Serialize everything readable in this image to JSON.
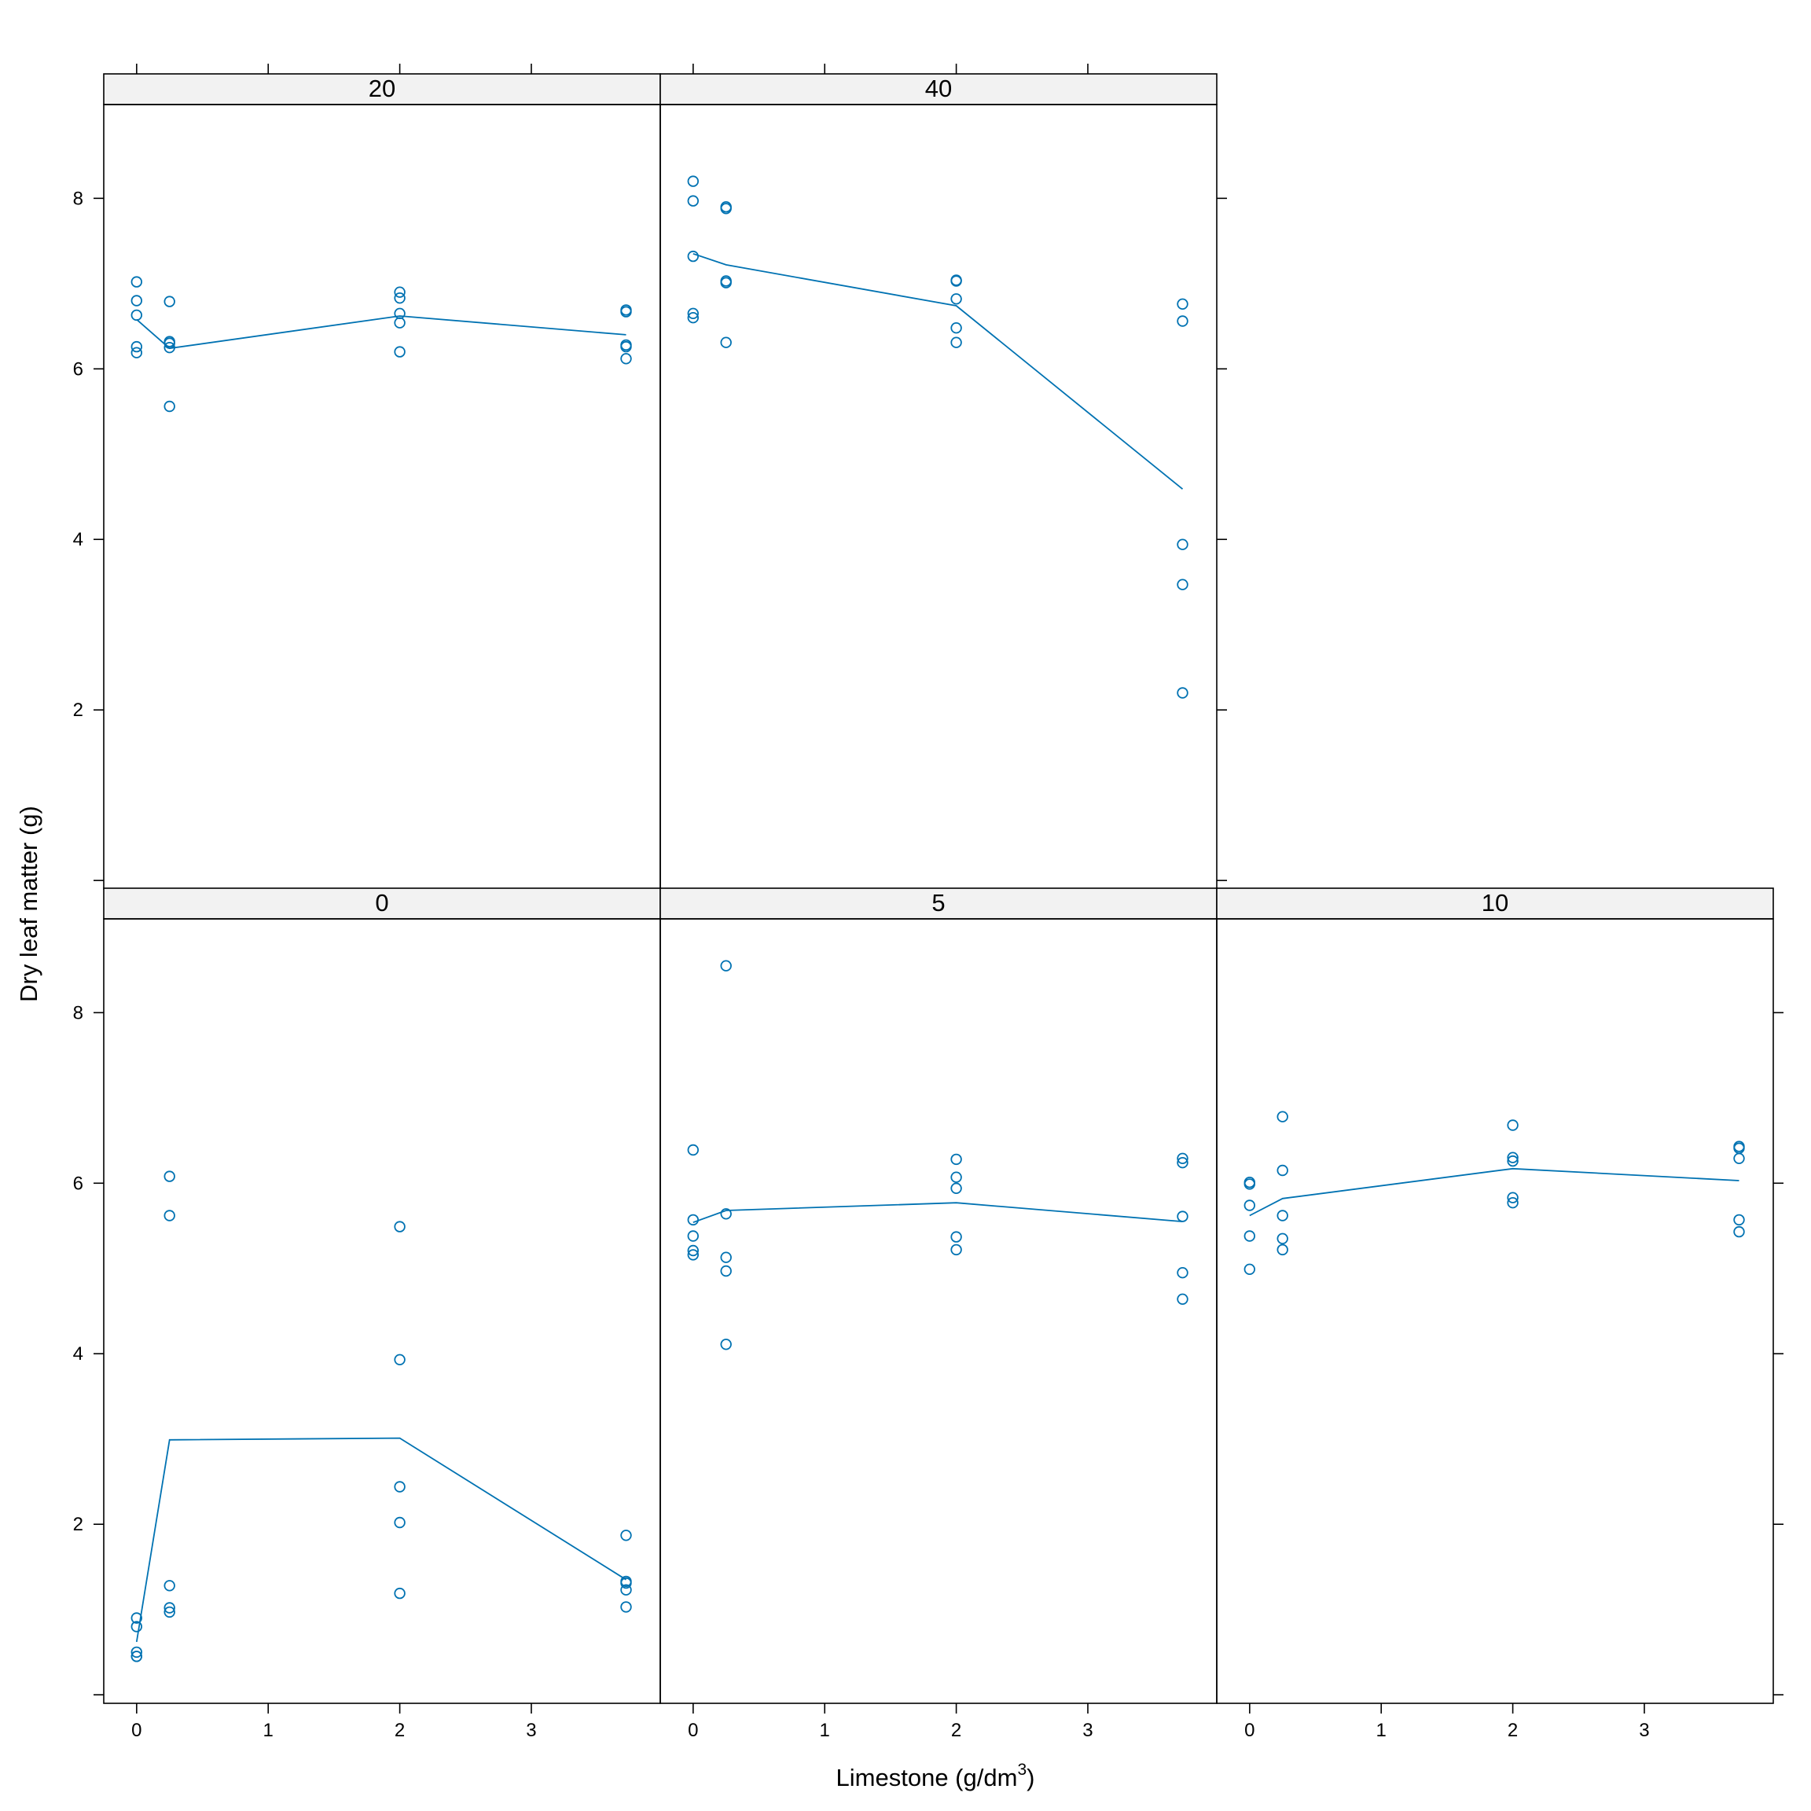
{
  "chart_data": {
    "type": "scatter",
    "subtype": "trellis scatter with mean line",
    "xlabel": "Limestone (g/dm",
    "xlabel_superscript": "3",
    "xlabel_suffix": ")",
    "ylabel": "Dry leaf matter (g)",
    "xlim": [
      -0.25,
      3.98
    ],
    "ylim": [
      -0.1,
      9.1
    ],
    "x_ticks": [
      0,
      1,
      2,
      3
    ],
    "x_tick_labels": [
      "0",
      "1",
      "2",
      "3"
    ],
    "y_ticks": [
      0,
      2,
      4,
      6,
      8
    ],
    "y_tick_labels": [
      "",
      "2",
      "4",
      "6",
      "8"
    ],
    "point_color": "#0072b2",
    "line_color": "#0072b2",
    "panels": [
      {
        "label": "20",
        "points": [
          [
            0,
            7.02
          ],
          [
            0,
            6.8
          ],
          [
            0,
            6.63
          ],
          [
            0,
            6.26
          ],
          [
            0,
            6.19
          ],
          [
            0.25,
            6.79
          ],
          [
            0.25,
            6.32
          ],
          [
            0.25,
            6.3
          ],
          [
            0.25,
            6.25
          ],
          [
            0.25,
            5.56
          ],
          [
            2,
            6.9
          ],
          [
            2,
            6.83
          ],
          [
            2,
            6.65
          ],
          [
            2,
            6.54
          ],
          [
            2,
            6.2
          ],
          [
            3.72,
            6.69
          ],
          [
            3.72,
            6.67
          ],
          [
            3.72,
            6.28
          ],
          [
            3.72,
            6.26
          ],
          [
            3.72,
            6.12
          ]
        ],
        "mean_line": [
          [
            0,
            6.58
          ],
          [
            0.25,
            6.24
          ],
          [
            2,
            6.62
          ],
          [
            3.72,
            6.4
          ]
        ]
      },
      {
        "label": "40",
        "points": [
          [
            0,
            8.2
          ],
          [
            0,
            7.97
          ],
          [
            0,
            7.32
          ],
          [
            0,
            6.65
          ],
          [
            0,
            6.6
          ],
          [
            0.25,
            7.9
          ],
          [
            0.25,
            7.88
          ],
          [
            0.25,
            7.03
          ],
          [
            0.25,
            7.01
          ],
          [
            0.25,
            6.31
          ],
          [
            2,
            7.04
          ],
          [
            2,
            7.03
          ],
          [
            2,
            6.82
          ],
          [
            2,
            6.48
          ],
          [
            2,
            6.31
          ],
          [
            3.72,
            6.76
          ],
          [
            3.72,
            6.56
          ],
          [
            3.72,
            3.94
          ],
          [
            3.72,
            3.47
          ],
          [
            3.72,
            2.2
          ]
        ],
        "mean_line": [
          [
            0,
            7.35
          ],
          [
            0.25,
            7.22
          ],
          [
            2,
            6.74
          ],
          [
            3.72,
            4.59
          ]
        ]
      },
      {
        "label": "0",
        "points": [
          [
            0,
            0.9
          ],
          [
            0,
            0.8
          ],
          [
            0,
            0.5
          ],
          [
            0,
            0.45
          ],
          [
            0,
            0.45
          ],
          [
            0.25,
            6.08
          ],
          [
            0.25,
            5.62
          ],
          [
            0.25,
            1.28
          ],
          [
            0.25,
            1.02
          ],
          [
            0.25,
            0.97
          ],
          [
            2,
            5.49
          ],
          [
            2,
            3.93
          ],
          [
            2,
            2.44
          ],
          [
            2,
            2.02
          ],
          [
            2,
            1.19
          ],
          [
            3.72,
            1.87
          ],
          [
            3.72,
            1.33
          ],
          [
            3.72,
            1.31
          ],
          [
            3.72,
            1.23
          ],
          [
            3.72,
            1.03
          ]
        ],
        "mean_line": [
          [
            0,
            0.62
          ],
          [
            0.25,
            2.99
          ],
          [
            2,
            3.01
          ],
          [
            3.72,
            1.35
          ]
        ]
      },
      {
        "label": "5",
        "points": [
          [
            0,
            6.39
          ],
          [
            0,
            5.57
          ],
          [
            0,
            5.38
          ],
          [
            0,
            5.21
          ],
          [
            0,
            5.16
          ],
          [
            0.25,
            8.55
          ],
          [
            0.25,
            5.64
          ],
          [
            0.25,
            5.13
          ],
          [
            0.25,
            4.97
          ],
          [
            0.25,
            4.11
          ],
          [
            2,
            6.28
          ],
          [
            2,
            6.07
          ],
          [
            2,
            5.94
          ],
          [
            2,
            5.37
          ],
          [
            2,
            5.22
          ],
          [
            3.72,
            6.29
          ],
          [
            3.72,
            6.24
          ],
          [
            3.72,
            5.61
          ],
          [
            3.72,
            4.95
          ],
          [
            3.72,
            4.64
          ]
        ],
        "mean_line": [
          [
            0,
            5.54
          ],
          [
            0.25,
            5.68
          ],
          [
            2,
            5.77
          ],
          [
            3.72,
            5.55
          ]
        ]
      },
      {
        "label": "10",
        "points": [
          [
            0,
            6.01
          ],
          [
            0,
            5.99
          ],
          [
            0,
            5.74
          ],
          [
            0,
            5.38
          ],
          [
            0,
            4.99
          ],
          [
            0.25,
            6.78
          ],
          [
            0.25,
            6.15
          ],
          [
            0.25,
            5.62
          ],
          [
            0.25,
            5.35
          ],
          [
            0.25,
            5.22
          ],
          [
            2,
            6.68
          ],
          [
            2,
            6.3
          ],
          [
            2,
            6.26
          ],
          [
            2,
            5.83
          ],
          [
            2,
            5.77
          ],
          [
            3.72,
            6.43
          ],
          [
            3.72,
            6.41
          ],
          [
            3.72,
            6.29
          ],
          [
            3.72,
            5.57
          ],
          [
            3.72,
            5.43
          ]
        ],
        "mean_line": [
          [
            0,
            5.62
          ],
          [
            0.25,
            5.82
          ],
          [
            2,
            6.17
          ],
          [
            3.72,
            6.03
          ]
        ]
      }
    ]
  }
}
